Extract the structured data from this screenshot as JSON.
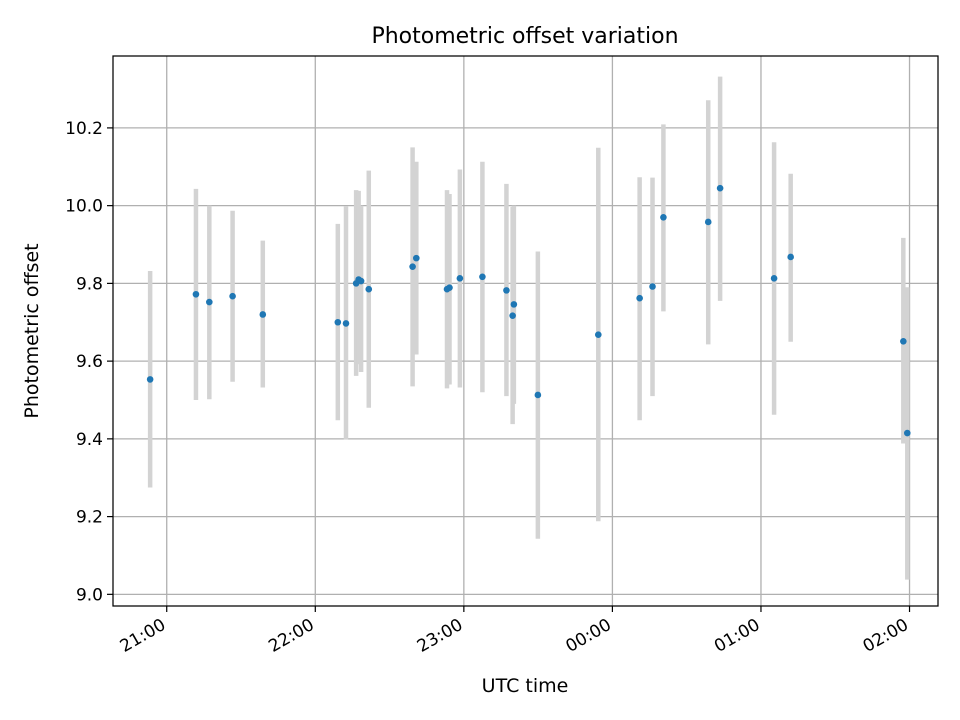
{
  "chart_data": {
    "type": "scatter",
    "title": "Photometric offset variation",
    "xlabel": "UTC time",
    "ylabel": "Photometric offset",
    "x_tick_labels": [
      "21:00",
      "22:00",
      "23:00",
      "00:00",
      "01:00",
      "02:00"
    ],
    "x_tick_values_min": [
      0,
      60,
      120,
      180,
      240,
      300
    ],
    "x_axis_start": "21:00",
    "xlim_min": [
      -21.7,
      311.5
    ],
    "y_ticks": [
      9.0,
      9.2,
      9.4,
      9.6,
      9.8,
      10.0,
      10.2
    ],
    "y_tick_labels": [
      "9.0",
      "9.2",
      "9.4",
      "9.6",
      "9.8",
      "10.0",
      "10.2"
    ],
    "ylim": [
      8.97,
      10.385
    ],
    "grid": true,
    "marker_color": "#1f77b4",
    "errorbar_color": "#d3d3d3",
    "points": [
      {
        "x": -6.7,
        "y": 9.553,
        "lo": 9.275,
        "hi": 9.832
      },
      {
        "x": 11.8,
        "y": 9.772,
        "lo": 9.5,
        "hi": 10.043
      },
      {
        "x": 17.2,
        "y": 9.752,
        "lo": 9.502,
        "hi": 10.0
      },
      {
        "x": 26.6,
        "y": 9.767,
        "lo": 9.547,
        "hi": 9.987
      },
      {
        "x": 38.8,
        "y": 9.72,
        "lo": 9.532,
        "hi": 9.91
      },
      {
        "x": 69.1,
        "y": 9.7,
        "lo": 9.448,
        "hi": 9.953
      },
      {
        "x": 72.4,
        "y": 9.697,
        "lo": 9.398,
        "hi": 9.998
      },
      {
        "x": 76.5,
        "y": 9.8,
        "lo": 9.562,
        "hi": 10.04
      },
      {
        "x": 77.5,
        "y": 9.81,
        "lo": 9.592,
        "hi": 10.038
      },
      {
        "x": 78.5,
        "y": 9.806,
        "lo": 9.572,
        "hi": 10.0
      },
      {
        "x": 81.6,
        "y": 9.785,
        "lo": 9.48,
        "hi": 10.09
      },
      {
        "x": 99.3,
        "y": 9.843,
        "lo": 9.535,
        "hi": 10.15
      },
      {
        "x": 100.8,
        "y": 9.865,
        "lo": 9.617,
        "hi": 10.113
      },
      {
        "x": 113.2,
        "y": 9.785,
        "lo": 9.53,
        "hi": 10.04
      },
      {
        "x": 114.2,
        "y": 9.789,
        "lo": 9.54,
        "hi": 10.03
      },
      {
        "x": 118.4,
        "y": 9.813,
        "lo": 9.532,
        "hi": 10.093
      },
      {
        "x": 127.5,
        "y": 9.817,
        "lo": 9.52,
        "hi": 10.113
      },
      {
        "x": 137.2,
        "y": 9.782,
        "lo": 9.51,
        "hi": 10.056
      },
      {
        "x": 139.7,
        "y": 9.717,
        "lo": 9.438,
        "hi": 9.997
      },
      {
        "x": 140.2,
        "y": 9.746,
        "lo": 9.49,
        "hi": 10.0
      },
      {
        "x": 149.9,
        "y": 9.513,
        "lo": 9.143,
        "hi": 9.882
      },
      {
        "x": 174.3,
        "y": 9.668,
        "lo": 9.188,
        "hi": 10.149
      },
      {
        "x": 191.0,
        "y": 9.762,
        "lo": 9.448,
        "hi": 10.073
      },
      {
        "x": 196.2,
        "y": 9.792,
        "lo": 9.51,
        "hi": 10.072
      },
      {
        "x": 200.6,
        "y": 9.97,
        "lo": 9.728,
        "hi": 10.209
      },
      {
        "x": 218.7,
        "y": 9.958,
        "lo": 9.643,
        "hi": 10.271
      },
      {
        "x": 223.5,
        "y": 10.045,
        "lo": 9.755,
        "hi": 10.332
      },
      {
        "x": 245.3,
        "y": 9.813,
        "lo": 9.462,
        "hi": 10.163
      },
      {
        "x": 252.0,
        "y": 9.868,
        "lo": 9.65,
        "hi": 10.082
      },
      {
        "x": 297.5,
        "y": 9.651,
        "lo": 9.388,
        "hi": 9.917
      },
      {
        "x": 299.1,
        "y": 9.415,
        "lo": 9.038,
        "hi": 9.79
      }
    ]
  }
}
